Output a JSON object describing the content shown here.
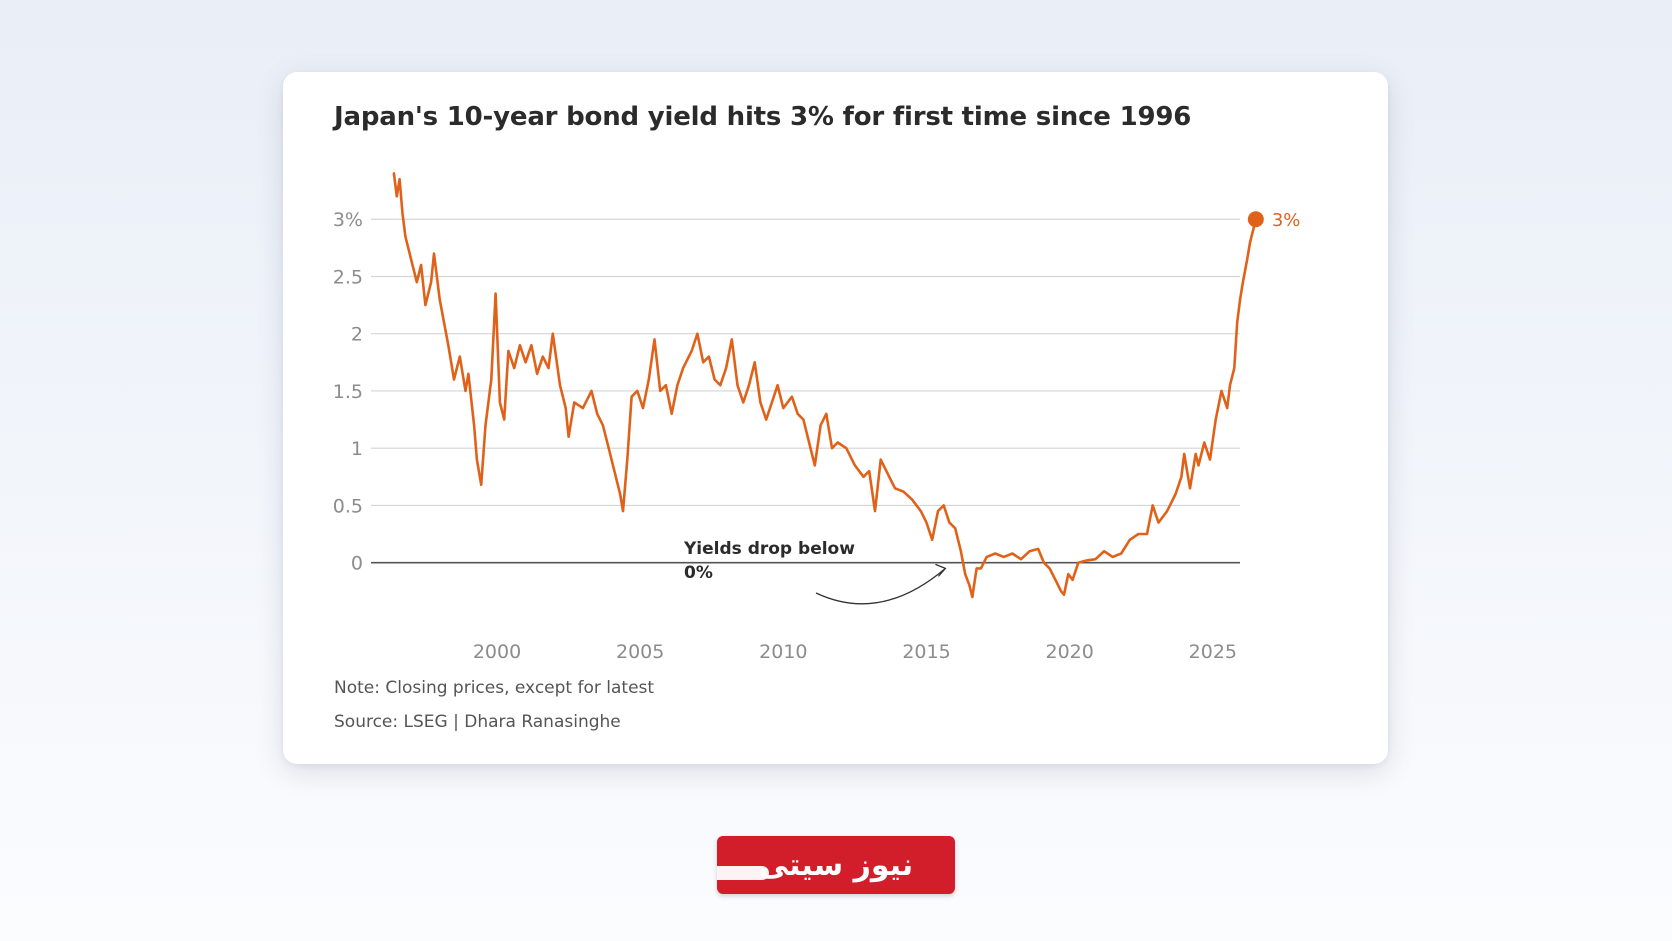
{
  "chart_data": {
    "type": "line",
    "title": "Japan's 10-year bond yield hits 3% for first time since 1996",
    "xlabel": "",
    "ylabel": "",
    "x_ticks": [
      2000,
      2005,
      2010,
      2015,
      2020,
      2025
    ],
    "y_ticks": [
      {
        "value": 0,
        "label": "0"
      },
      {
        "value": 0.5,
        "label": "0.5"
      },
      {
        "value": 1,
        "label": "1"
      },
      {
        "value": 1.5,
        "label": "1.5"
      },
      {
        "value": 2,
        "label": "2"
      },
      {
        "value": 2.5,
        "label": "2.5"
      },
      {
        "value": 3,
        "label": "3%"
      }
    ],
    "xlim": [
      1995.6,
      2027.1
    ],
    "ylim": [
      -0.3,
      3.5
    ],
    "grid": "horizontal",
    "series": [
      {
        "color": "#e0621a",
        "points": [
          [
            1996.4,
            3.4
          ],
          [
            1996.5,
            3.2
          ],
          [
            1996.6,
            3.35
          ],
          [
            1996.7,
            3.05
          ],
          [
            1996.8,
            2.85
          ],
          [
            1997.0,
            2.65
          ],
          [
            1997.2,
            2.45
          ],
          [
            1997.35,
            2.6
          ],
          [
            1997.5,
            2.25
          ],
          [
            1997.7,
            2.45
          ],
          [
            1997.8,
            2.7
          ],
          [
            1998.0,
            2.3
          ],
          [
            1998.3,
            1.9
          ],
          [
            1998.5,
            1.6
          ],
          [
            1998.7,
            1.8
          ],
          [
            1998.9,
            1.5
          ],
          [
            1999.0,
            1.65
          ],
          [
            1999.2,
            1.2
          ],
          [
            1999.3,
            0.9
          ],
          [
            1999.45,
            0.68
          ],
          [
            1999.6,
            1.2
          ],
          [
            1999.8,
            1.6
          ],
          [
            1999.95,
            2.35
          ],
          [
            2000.1,
            1.4
          ],
          [
            2000.25,
            1.25
          ],
          [
            2000.4,
            1.85
          ],
          [
            2000.6,
            1.7
          ],
          [
            2000.8,
            1.9
          ],
          [
            2001.0,
            1.75
          ],
          [
            2001.2,
            1.9
          ],
          [
            2001.4,
            1.65
          ],
          [
            2001.6,
            1.8
          ],
          [
            2001.8,
            1.7
          ],
          [
            2001.95,
            2.0
          ],
          [
            2002.2,
            1.55
          ],
          [
            2002.4,
            1.35
          ],
          [
            2002.5,
            1.1
          ],
          [
            2002.7,
            1.4
          ],
          [
            2003.0,
            1.35
          ],
          [
            2003.3,
            1.5
          ],
          [
            2003.5,
            1.3
          ],
          [
            2003.7,
            1.2
          ],
          [
            2003.9,
            1.0
          ],
          [
            2004.1,
            0.8
          ],
          [
            2004.3,
            0.6
          ],
          [
            2004.4,
            0.45
          ],
          [
            2004.55,
            0.9
          ],
          [
            2004.7,
            1.45
          ],
          [
            2004.9,
            1.5
          ],
          [
            2005.1,
            1.35
          ],
          [
            2005.3,
            1.6
          ],
          [
            2005.5,
            1.95
          ],
          [
            2005.7,
            1.5
          ],
          [
            2005.9,
            1.55
          ],
          [
            2006.1,
            1.3
          ],
          [
            2006.3,
            1.55
          ],
          [
            2006.5,
            1.7
          ],
          [
            2006.8,
            1.85
          ],
          [
            2007.0,
            2.0
          ],
          [
            2007.2,
            1.75
          ],
          [
            2007.4,
            1.8
          ],
          [
            2007.6,
            1.6
          ],
          [
            2007.8,
            1.55
          ],
          [
            2008.0,
            1.7
          ],
          [
            2008.2,
            1.95
          ],
          [
            2008.4,
            1.55
          ],
          [
            2008.6,
            1.4
          ],
          [
            2008.8,
            1.55
          ],
          [
            2009.0,
            1.75
          ],
          [
            2009.2,
            1.4
          ],
          [
            2009.4,
            1.25
          ],
          [
            2009.6,
            1.4
          ],
          [
            2009.8,
            1.55
          ],
          [
            2010.0,
            1.35
          ],
          [
            2010.3,
            1.45
          ],
          [
            2010.5,
            1.3
          ],
          [
            2010.7,
            1.25
          ],
          [
            2010.9,
            1.05
          ],
          [
            2011.1,
            0.85
          ],
          [
            2011.3,
            1.2
          ],
          [
            2011.5,
            1.3
          ],
          [
            2011.7,
            1.0
          ],
          [
            2011.9,
            1.05
          ],
          [
            2012.2,
            1.0
          ],
          [
            2012.5,
            0.85
          ],
          [
            2012.8,
            0.75
          ],
          [
            2013.0,
            0.8
          ],
          [
            2013.2,
            0.45
          ],
          [
            2013.4,
            0.9
          ],
          [
            2013.6,
            0.8
          ],
          [
            2013.9,
            0.65
          ],
          [
            2014.2,
            0.62
          ],
          [
            2014.5,
            0.55
          ],
          [
            2014.8,
            0.45
          ],
          [
            2015.0,
            0.35
          ],
          [
            2015.2,
            0.2
          ],
          [
            2015.4,
            0.45
          ],
          [
            2015.6,
            0.5
          ],
          [
            2015.8,
            0.35
          ],
          [
            2016.0,
            0.3
          ],
          [
            2016.2,
            0.1
          ],
          [
            2016.35,
            -0.1
          ],
          [
            2016.5,
            -0.2
          ],
          [
            2016.6,
            -0.3
          ],
          [
            2016.75,
            -0.05
          ],
          [
            2016.9,
            -0.05
          ],
          [
            2017.1,
            0.05
          ],
          [
            2017.4,
            0.08
          ],
          [
            2017.7,
            0.05
          ],
          [
            2018.0,
            0.08
          ],
          [
            2018.3,
            0.03
          ],
          [
            2018.6,
            0.1
          ],
          [
            2018.9,
            0.12
          ],
          [
            2019.1,
            0.0
          ],
          [
            2019.3,
            -0.05
          ],
          [
            2019.5,
            -0.15
          ],
          [
            2019.7,
            -0.25
          ],
          [
            2019.8,
            -0.28
          ],
          [
            2019.95,
            -0.1
          ],
          [
            2020.1,
            -0.15
          ],
          [
            2020.3,
            0.0
          ],
          [
            2020.6,
            0.02
          ],
          [
            2020.9,
            0.03
          ],
          [
            2021.2,
            0.1
          ],
          [
            2021.5,
            0.05
          ],
          [
            2021.8,
            0.08
          ],
          [
            2022.1,
            0.2
          ],
          [
            2022.4,
            0.25
          ],
          [
            2022.7,
            0.25
          ],
          [
            2022.9,
            0.5
          ],
          [
            2023.1,
            0.35
          ],
          [
            2023.4,
            0.45
          ],
          [
            2023.7,
            0.6
          ],
          [
            2023.9,
            0.75
          ],
          [
            2024.0,
            0.95
          ],
          [
            2024.2,
            0.65
          ],
          [
            2024.4,
            0.95
          ],
          [
            2024.5,
            0.85
          ],
          [
            2024.7,
            1.05
          ],
          [
            2024.9,
            0.9
          ],
          [
            2025.1,
            1.25
          ],
          [
            2025.3,
            1.5
          ],
          [
            2025.5,
            1.35
          ],
          [
            2025.6,
            1.55
          ],
          [
            2025.75,
            1.7
          ],
          [
            2025.85,
            2.1
          ],
          [
            2025.95,
            2.3
          ],
          [
            2026.05,
            2.45
          ],
          [
            2026.2,
            2.65
          ],
          [
            2026.3,
            2.8
          ],
          [
            2026.4,
            2.9
          ],
          [
            2026.5,
            3.0
          ]
        ]
      }
    ],
    "end_marker": {
      "x": 2026.5,
      "y": 3.0,
      "label": "3%"
    },
    "annotations": [
      {
        "text": "Yields drop below 0%",
        "target_x": 2015.8,
        "target_y": -0.05
      }
    ]
  },
  "note": "Note: Closing prices, except for latest",
  "source": "Source: LSEG | Dhara Ranasinghe",
  "branding": {
    "logo_text": "نیوز سیتی"
  },
  "colors": {
    "line": "#e0621a",
    "grid": "#d4d4d4",
    "zero_line": "#555555",
    "brand_red": "#d21e2a"
  }
}
